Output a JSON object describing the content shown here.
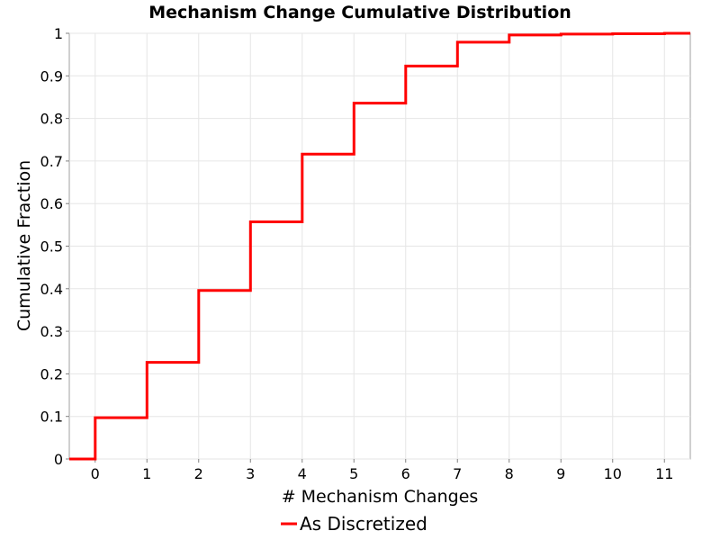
{
  "chart_data": {
    "type": "line",
    "step": true,
    "title": "Mechanism Change Cumulative Distribution",
    "xlabel": "# Mechanism Changes",
    "ylabel": "Cumulative Fraction",
    "xlim": [
      -0.5,
      11.5
    ],
    "ylim": [
      0,
      1
    ],
    "xticks": [
      0,
      1,
      2,
      3,
      4,
      5,
      6,
      7,
      8,
      9,
      10,
      11
    ],
    "yticks": [
      0,
      0.1,
      0.2,
      0.3,
      0.4,
      0.5,
      0.6,
      0.7,
      0.8,
      0.9,
      1
    ],
    "ytick_labels": [
      "0",
      "0.1",
      "0.2",
      "0.3",
      "0.4",
      "0.5",
      "0.6",
      "0.7",
      "0.8",
      "0.9",
      "1"
    ],
    "grid": true,
    "legend_position": "bottom-center",
    "series": [
      {
        "name": "As Discretized",
        "color": "#ff0000",
        "x": [
          0,
          1,
          2,
          3,
          4,
          5,
          6,
          7,
          8,
          9,
          10,
          11
        ],
        "y": [
          0.097,
          0.227,
          0.396,
          0.557,
          0.716,
          0.836,
          0.923,
          0.979,
          0.996,
          0.998,
          0.999,
          1.0
        ]
      }
    ]
  }
}
